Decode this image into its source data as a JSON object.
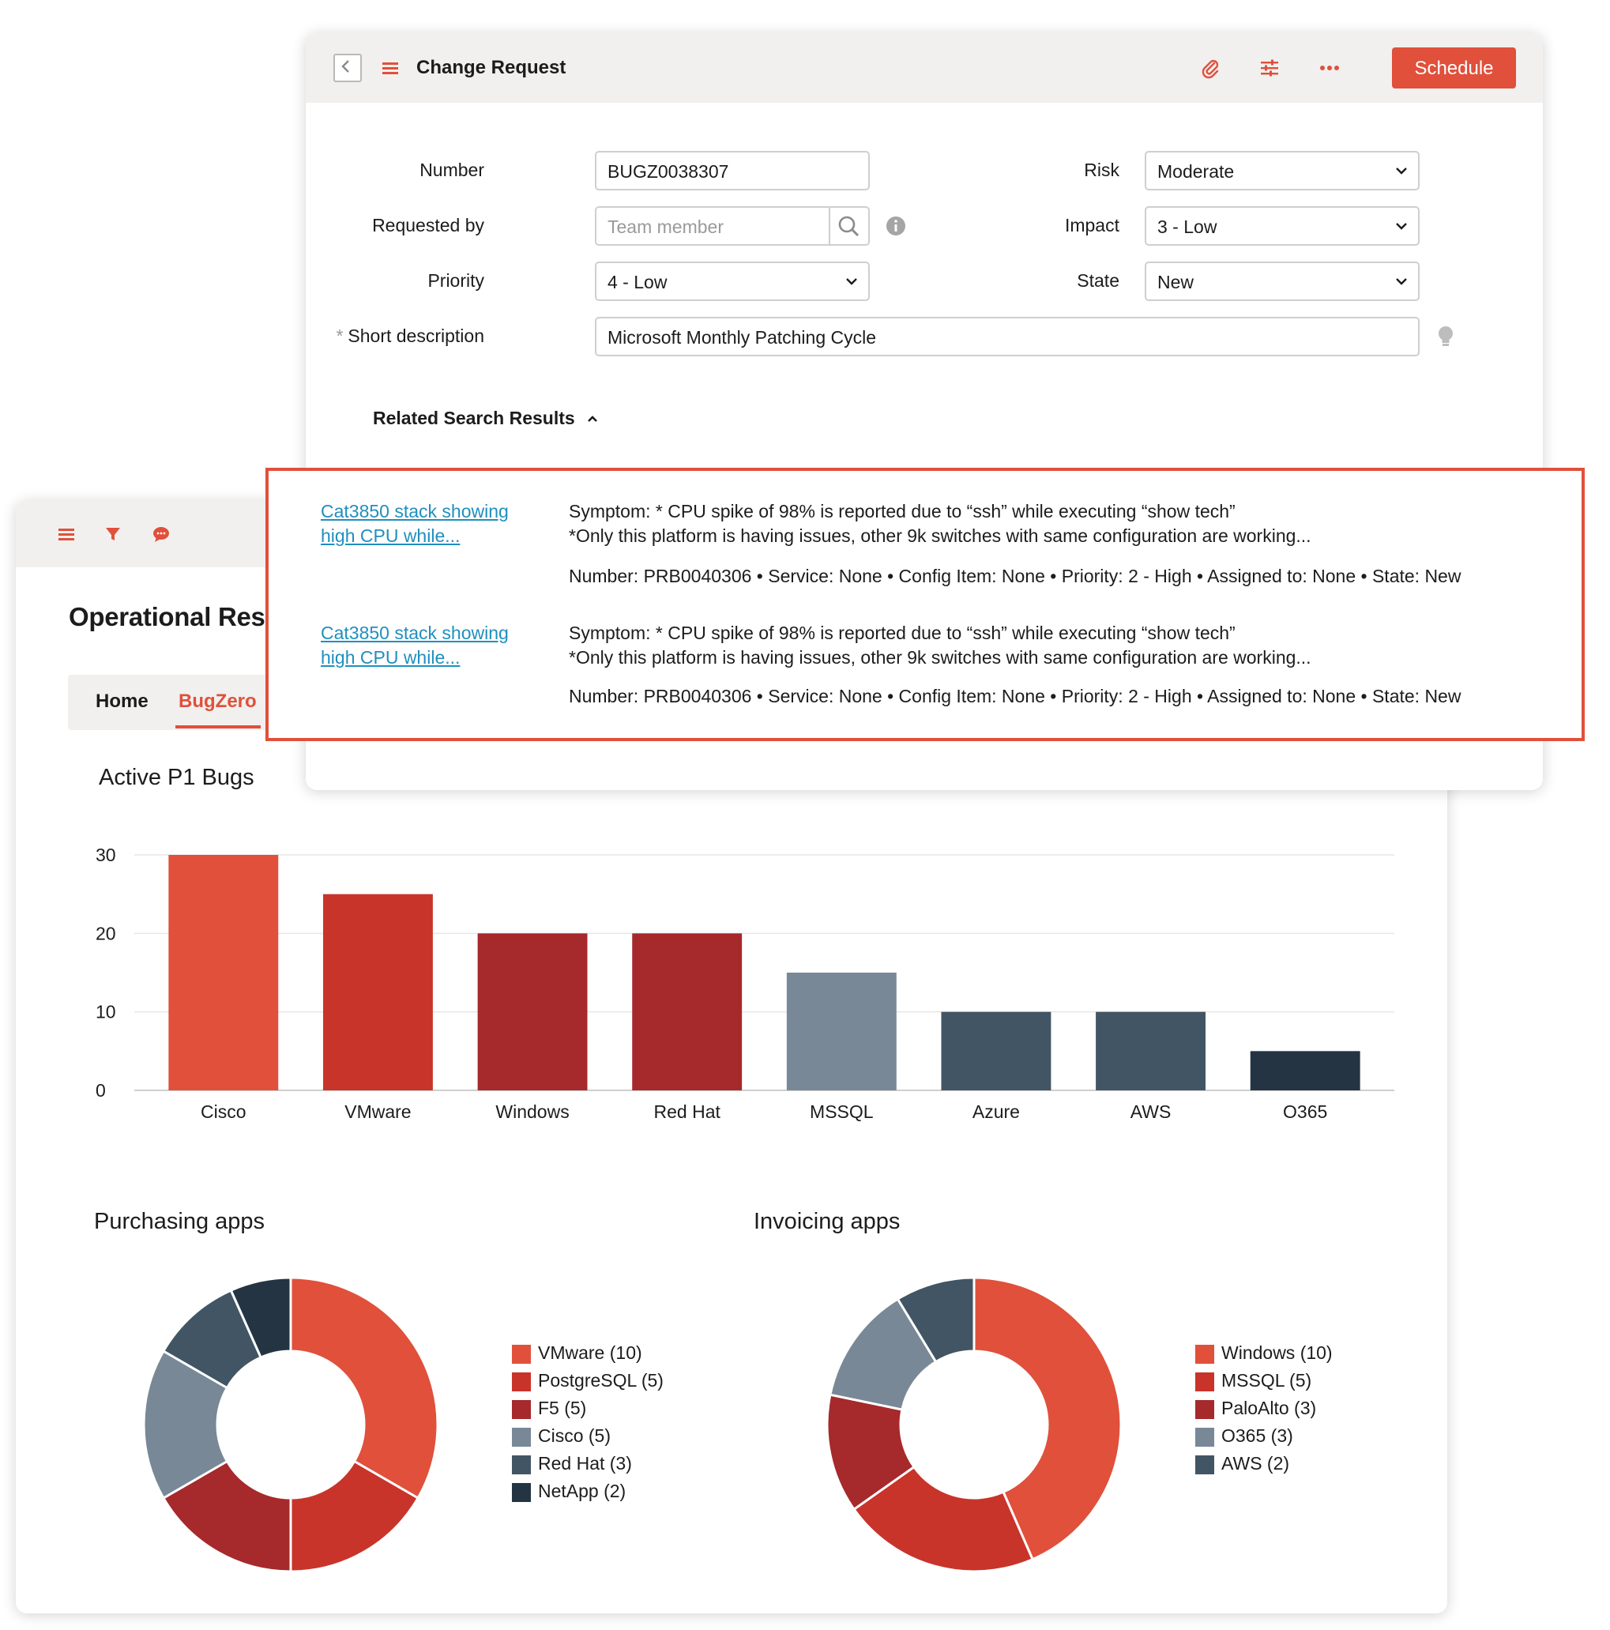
{
  "change_request": {
    "title": "Change Request",
    "schedule_label": "Schedule",
    "fields": {
      "number_label": "Number",
      "number_value": "BUGZ0038307",
      "requested_by_label": "Requested by",
      "requested_by_placeholder": "Team member",
      "priority_label": "Priority",
      "priority_value": "4 - Low",
      "short_description_label": "Short description",
      "required_marker": "*",
      "short_description_value": "Microsoft Monthly Patching Cycle",
      "risk_label": "Risk",
      "risk_value": "Moderate",
      "impact_label": "Impact",
      "impact_value": "3 - Low",
      "state_label": "State",
      "state_value": "New"
    },
    "related_title": "Related Search Results"
  },
  "results": [
    {
      "link_line1": "Cat3850 stack showing",
      "link_line2": "high CPU while...",
      "symptom_line1": "Symptom: * CPU spike of 98% is reported due to “ssh” while executing “show tech”",
      "symptom_line2": "*Only this platform is having issues, other 9k switches with same configuration are working...",
      "meta": "Number: PRB0040306  •  Service: None  •  Config Item: None  •  Priority: 2 - High  •  Assigned to: None  •  State: New"
    },
    {
      "link_line1": "Cat3850 stack showing",
      "link_line2": "high CPU while...",
      "symptom_line1": "Symptom: * CPU spike of 98% is reported due to “ssh” while executing “show tech”",
      "symptom_line2": "*Only this platform is having issues, other 9k switches with same configuration are working...",
      "meta": "Number: PRB0040306  •  Service: None  •  Config Item: None  •  Priority: 2 - High  •  Assigned to: None  •  State: New"
    }
  ],
  "dashboard": {
    "title": "Operational Resi",
    "tabs": [
      "Home",
      "BugZero"
    ],
    "active_tab": "BugZero"
  },
  "colors": {
    "accent": "#e0503b",
    "red2": "#c8342a",
    "red3": "#a6292c",
    "slate": "#788896",
    "navy": "#425564",
    "dark": "#243443"
  },
  "icons": {
    "header": [
      "chevron-left-icon",
      "menu-icon",
      "paperclip-icon",
      "sliders-icon",
      "more-icon"
    ],
    "dashboard": [
      "menu-icon",
      "filter-icon",
      "chat-icon"
    ],
    "fields": [
      "search-icon",
      "info-icon",
      "lightbulb-icon"
    ]
  },
  "chart_data": [
    {
      "type": "bar",
      "title": "Active P1 Bugs",
      "categories": [
        "Cisco",
        "VMware",
        "Windows",
        "Red Hat",
        "MSSQL",
        "Azure",
        "AWS",
        "O365"
      ],
      "values": [
        30,
        25,
        20,
        20,
        15,
        10,
        10,
        5
      ],
      "colors": [
        "#e0503b",
        "#c8342a",
        "#a6292c",
        "#a6292c",
        "#788896",
        "#425564",
        "#425564",
        "#243443"
      ],
      "yticks": [
        0,
        10,
        20,
        30
      ],
      "ylim": [
        0,
        30
      ],
      "grid": true
    },
    {
      "type": "pie",
      "title": "Purchasing apps",
      "labels": [
        "VMware",
        "PostgreSQL",
        "F5",
        "Cisco",
        "Red Hat",
        "NetApp"
      ],
      "values": [
        10,
        5,
        5,
        5,
        3,
        2
      ],
      "legend_text": [
        "VMware (10)",
        "PostgreSQL (5)",
        "F5 (5)",
        "Cisco (5)",
        "Red Hat (3)",
        "NetApp (2)"
      ],
      "colors": [
        "#e0503b",
        "#c8342a",
        "#a6292c",
        "#788896",
        "#425564",
        "#243443"
      ],
      "legend": "right"
    },
    {
      "type": "pie",
      "title": "Invoicing apps",
      "labels": [
        "Windows",
        "MSSQL",
        "PaloAlto",
        "O365",
        "AWS"
      ],
      "values": [
        10,
        5,
        3,
        3,
        2
      ],
      "legend_text": [
        "Windows (10)",
        "MSSQL (5)",
        "PaloAlto (3)",
        "O365 (3)",
        "AWS (2)"
      ],
      "colors": [
        "#e0503b",
        "#c8342a",
        "#a6292c",
        "#788896",
        "#425564"
      ],
      "legend": "right"
    }
  ]
}
